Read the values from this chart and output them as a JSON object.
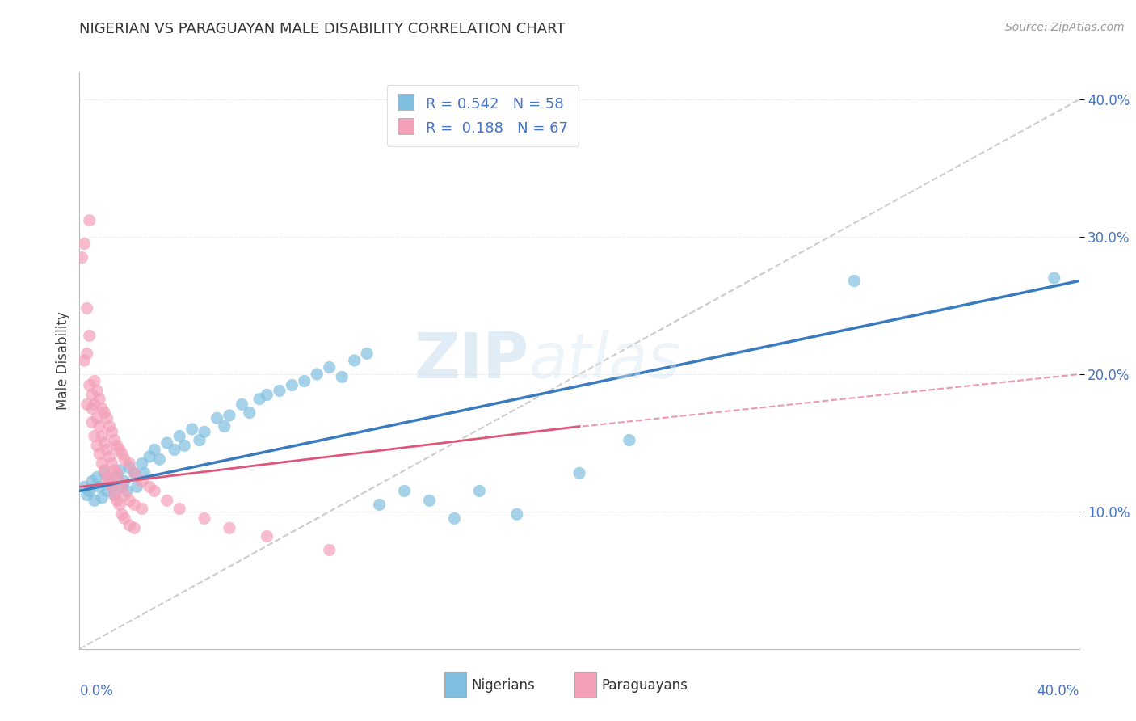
{
  "title": "NIGERIAN VS PARAGUAYAN MALE DISABILITY CORRELATION CHART",
  "source": "Source: ZipAtlas.com",
  "ylabel": "Male Disability",
  "xlim": [
    0.0,
    0.4
  ],
  "ylim": [
    0.0,
    0.42
  ],
  "yticks": [
    0.1,
    0.2,
    0.3,
    0.4
  ],
  "ytick_labels": [
    "10.0%",
    "20.0%",
    "30.0%",
    "40.0%"
  ],
  "nigerian_color": "#7fbfdf",
  "paraguayan_color": "#f4a0b8",
  "nigerian_R": 0.542,
  "nigerian_N": 58,
  "paraguayan_R": 0.188,
  "paraguayan_N": 67,
  "nigerian_line_color": "#3a7bbf",
  "paraguayan_line_color": "#e0567a",
  "trendline_color": "#cccccc",
  "watermark_zip": "ZIP",
  "watermark_atlas": "atlas",
  "legend_label_1": "Nigerians",
  "legend_label_2": "Paraguayans",
  "nigerian_scatter": [
    [
      0.002,
      0.118
    ],
    [
      0.003,
      0.112
    ],
    [
      0.004,
      0.115
    ],
    [
      0.005,
      0.122
    ],
    [
      0.006,
      0.108
    ],
    [
      0.007,
      0.125
    ],
    [
      0.008,
      0.118
    ],
    [
      0.009,
      0.11
    ],
    [
      0.01,
      0.128
    ],
    [
      0.011,
      0.115
    ],
    [
      0.012,
      0.122
    ],
    [
      0.013,
      0.118
    ],
    [
      0.014,
      0.112
    ],
    [
      0.015,
      0.125
    ],
    [
      0.016,
      0.13
    ],
    [
      0.017,
      0.118
    ],
    [
      0.018,
      0.122
    ],
    [
      0.019,
      0.115
    ],
    [
      0.02,
      0.132
    ],
    [
      0.022,
      0.128
    ],
    [
      0.023,
      0.118
    ],
    [
      0.025,
      0.135
    ],
    [
      0.026,
      0.128
    ],
    [
      0.028,
      0.14
    ],
    [
      0.03,
      0.145
    ],
    [
      0.032,
      0.138
    ],
    [
      0.035,
      0.15
    ],
    [
      0.038,
      0.145
    ],
    [
      0.04,
      0.155
    ],
    [
      0.042,
      0.148
    ],
    [
      0.045,
      0.16
    ],
    [
      0.048,
      0.152
    ],
    [
      0.05,
      0.158
    ],
    [
      0.055,
      0.168
    ],
    [
      0.058,
      0.162
    ],
    [
      0.06,
      0.17
    ],
    [
      0.065,
      0.178
    ],
    [
      0.068,
      0.172
    ],
    [
      0.072,
      0.182
    ],
    [
      0.075,
      0.185
    ],
    [
      0.08,
      0.188
    ],
    [
      0.085,
      0.192
    ],
    [
      0.09,
      0.195
    ],
    [
      0.095,
      0.2
    ],
    [
      0.1,
      0.205
    ],
    [
      0.105,
      0.198
    ],
    [
      0.11,
      0.21
    ],
    [
      0.115,
      0.215
    ],
    [
      0.12,
      0.105
    ],
    [
      0.13,
      0.115
    ],
    [
      0.14,
      0.108
    ],
    [
      0.15,
      0.095
    ],
    [
      0.16,
      0.115
    ],
    [
      0.175,
      0.098
    ],
    [
      0.2,
      0.128
    ],
    [
      0.22,
      0.152
    ],
    [
      0.31,
      0.268
    ],
    [
      0.39,
      0.27
    ]
  ],
  "paraguayan_scatter": [
    [
      0.001,
      0.285
    ],
    [
      0.002,
      0.295
    ],
    [
      0.002,
      0.21
    ],
    [
      0.003,
      0.248
    ],
    [
      0.003,
      0.215
    ],
    [
      0.003,
      0.178
    ],
    [
      0.004,
      0.312
    ],
    [
      0.004,
      0.228
    ],
    [
      0.004,
      0.192
    ],
    [
      0.005,
      0.185
    ],
    [
      0.005,
      0.175
    ],
    [
      0.005,
      0.165
    ],
    [
      0.006,
      0.195
    ],
    [
      0.006,
      0.178
    ],
    [
      0.006,
      0.155
    ],
    [
      0.007,
      0.188
    ],
    [
      0.007,
      0.168
    ],
    [
      0.007,
      0.148
    ],
    [
      0.008,
      0.182
    ],
    [
      0.008,
      0.162
    ],
    [
      0.008,
      0.142
    ],
    [
      0.009,
      0.175
    ],
    [
      0.009,
      0.155
    ],
    [
      0.009,
      0.135
    ],
    [
      0.01,
      0.172
    ],
    [
      0.01,
      0.15
    ],
    [
      0.01,
      0.13
    ],
    [
      0.011,
      0.168
    ],
    [
      0.011,
      0.145
    ],
    [
      0.011,
      0.125
    ],
    [
      0.012,
      0.162
    ],
    [
      0.012,
      0.14
    ],
    [
      0.012,
      0.122
    ],
    [
      0.013,
      0.158
    ],
    [
      0.013,
      0.135
    ],
    [
      0.013,
      0.118
    ],
    [
      0.014,
      0.152
    ],
    [
      0.014,
      0.13
    ],
    [
      0.014,
      0.112
    ],
    [
      0.015,
      0.148
    ],
    [
      0.015,
      0.128
    ],
    [
      0.015,
      0.108
    ],
    [
      0.016,
      0.145
    ],
    [
      0.016,
      0.122
    ],
    [
      0.016,
      0.105
    ],
    [
      0.017,
      0.142
    ],
    [
      0.017,
      0.118
    ],
    [
      0.017,
      0.098
    ],
    [
      0.018,
      0.138
    ],
    [
      0.018,
      0.112
    ],
    [
      0.018,
      0.095
    ],
    [
      0.02,
      0.135
    ],
    [
      0.02,
      0.108
    ],
    [
      0.02,
      0.09
    ],
    [
      0.022,
      0.128
    ],
    [
      0.022,
      0.105
    ],
    [
      0.022,
      0.088
    ],
    [
      0.025,
      0.122
    ],
    [
      0.025,
      0.102
    ],
    [
      0.028,
      0.118
    ],
    [
      0.03,
      0.115
    ],
    [
      0.035,
      0.108
    ],
    [
      0.04,
      0.102
    ],
    [
      0.05,
      0.095
    ],
    [
      0.06,
      0.088
    ],
    [
      0.075,
      0.082
    ],
    [
      0.1,
      0.072
    ]
  ]
}
